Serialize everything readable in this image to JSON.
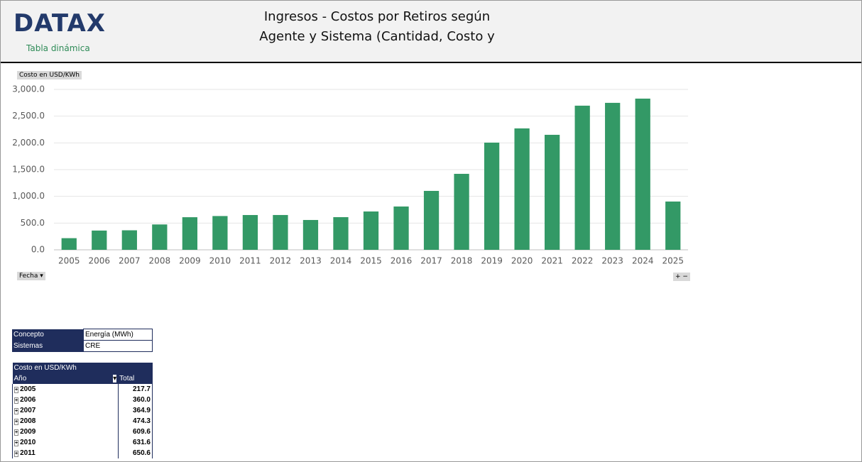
{
  "header": {
    "logo": "DATAX",
    "subtitle": "Tabla dinámica",
    "title_line1": "Ingresos - Costos por Retiros según",
    "title_line2": "Agente y Sistema (Cantidad, Costo y"
  },
  "chart_data": {
    "type": "bar",
    "value_field_button": "Costo en USD/KWh",
    "axis_field_button": "Fecha",
    "categories": [
      "2005",
      "2006",
      "2007",
      "2008",
      "2009",
      "2010",
      "2011",
      "2012",
      "2013",
      "2014",
      "2015",
      "2016",
      "2017",
      "2018",
      "2019",
      "2020",
      "2021",
      "2022",
      "2023",
      "2024",
      "2025"
    ],
    "values": [
      217.7,
      360.0,
      364.9,
      474.3,
      609.6,
      631.6,
      650.6,
      651,
      558,
      611,
      717,
      810,
      1102,
      1421,
      2005,
      2271,
      2151,
      2696,
      2749,
      2828,
      903
    ],
    "color": "#339966",
    "ylim": [
      0,
      3000
    ],
    "yticks": [
      {
        "value": 0,
        "label": "0.0"
      },
      {
        "value": 500,
        "label": "500.0"
      },
      {
        "value": 1000,
        "label": "1,000.0"
      },
      {
        "value": 1500,
        "label": "1,500.0"
      },
      {
        "value": 2000,
        "label": "2,000.0"
      },
      {
        "value": 2500,
        "label": "2,500.0"
      },
      {
        "value": 3000,
        "label": "3,000.0"
      }
    ],
    "grid": true
  },
  "filters": {
    "rows": [
      [
        "Concepto",
        "Energía (MWh)"
      ],
      [
        "Sistemas",
        "CRE"
      ]
    ]
  },
  "table": {
    "value_header": "Costo en USD/KWh",
    "row_header": "Año",
    "col_header": "Total",
    "rows": [
      [
        "2005",
        "217.7"
      ],
      [
        "2006",
        "360.0"
      ],
      [
        "2007",
        "364.9"
      ],
      [
        "2008",
        "474.3"
      ],
      [
        "2009",
        "609.6"
      ],
      [
        "2010",
        "631.6"
      ],
      [
        "2011",
        "650.6"
      ]
    ]
  }
}
